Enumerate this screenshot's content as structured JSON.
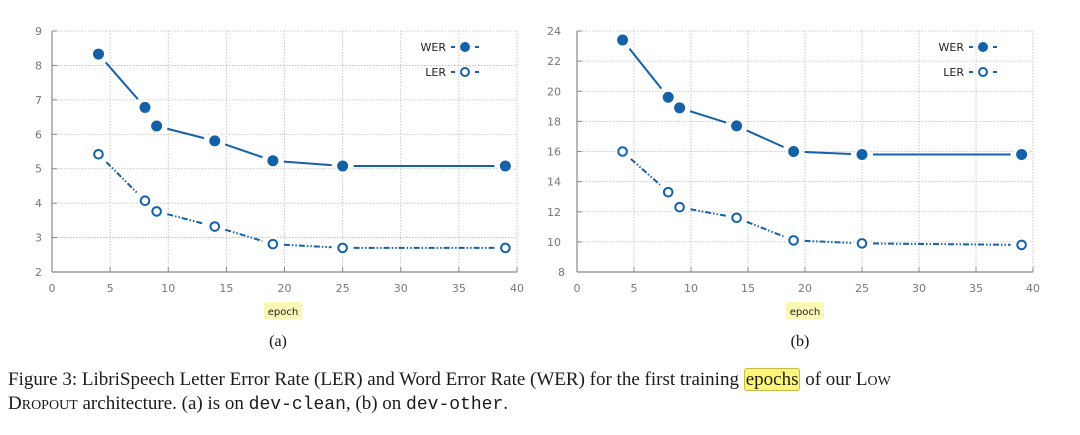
{
  "chart_data": [
    {
      "type": "line",
      "id": "a",
      "sublabel": "(a)",
      "xlabel": "epoch",
      "ylabel": "",
      "xlim": [
        0,
        40
      ],
      "ylim": [
        2,
        9
      ],
      "xticks": [
        0,
        5,
        10,
        15,
        20,
        25,
        30,
        35,
        40
      ],
      "yticks": [
        2,
        3,
        4,
        5,
        6,
        7,
        8,
        9
      ],
      "grid": true,
      "legend": "top-right",
      "series": [
        {
          "name": "WER",
          "marker": "filled-circle",
          "line": "solid",
          "x": [
            4,
            8,
            9,
            14,
            19,
            25,
            39
          ],
          "y": [
            8.33,
            6.78,
            6.24,
            5.81,
            5.23,
            5.08,
            5.08
          ]
        },
        {
          "name": "LER",
          "marker": "open-circle",
          "line": "dash-dot-dot",
          "x": [
            4,
            8,
            9,
            14,
            19,
            25,
            39
          ],
          "y": [
            5.42,
            4.07,
            3.76,
            3.32,
            2.81,
            2.7,
            2.7
          ]
        }
      ]
    },
    {
      "type": "line",
      "id": "b",
      "sublabel": "(b)",
      "xlabel": "epoch",
      "ylabel": "",
      "xlim": [
        0,
        40
      ],
      "ylim": [
        8,
        24
      ],
      "xticks": [
        0,
        5,
        10,
        15,
        20,
        25,
        30,
        35,
        40
      ],
      "yticks": [
        8,
        10,
        12,
        14,
        16,
        18,
        20,
        22,
        24
      ],
      "grid": true,
      "legend": "top-right",
      "series": [
        {
          "name": "WER",
          "marker": "filled-circle",
          "line": "solid",
          "x": [
            4,
            8,
            9,
            14,
            19,
            25,
            39
          ],
          "y": [
            23.4,
            19.6,
            18.9,
            17.7,
            16.0,
            15.8,
            15.8
          ]
        },
        {
          "name": "LER",
          "marker": "open-circle",
          "line": "dash-dot-dot",
          "x": [
            4,
            8,
            9,
            14,
            19,
            25,
            39
          ],
          "y": [
            16.0,
            13.3,
            12.3,
            11.6,
            10.1,
            9.9,
            9.8
          ]
        }
      ]
    }
  ],
  "colors": {
    "series": "#1461a8",
    "grid": "#bbbbbb",
    "axis": "#888888",
    "highlight": "#fbf57a"
  },
  "caption": {
    "prefix": "Figure 3:  LibriSpeech Letter Error Rate (LER) and Word Error Rate (WER) for the first training ",
    "highlighted": "epochs",
    "mid": " of our ",
    "low_L": "L",
    "low_rest": "OW",
    "line2_D": "D",
    "line2_rest": "ROPOUT",
    "after_arch": " architecture. (a) is on ",
    "code1": "dev-clean",
    "between": ", (b) on ",
    "code2": "dev-other",
    "end": "."
  }
}
